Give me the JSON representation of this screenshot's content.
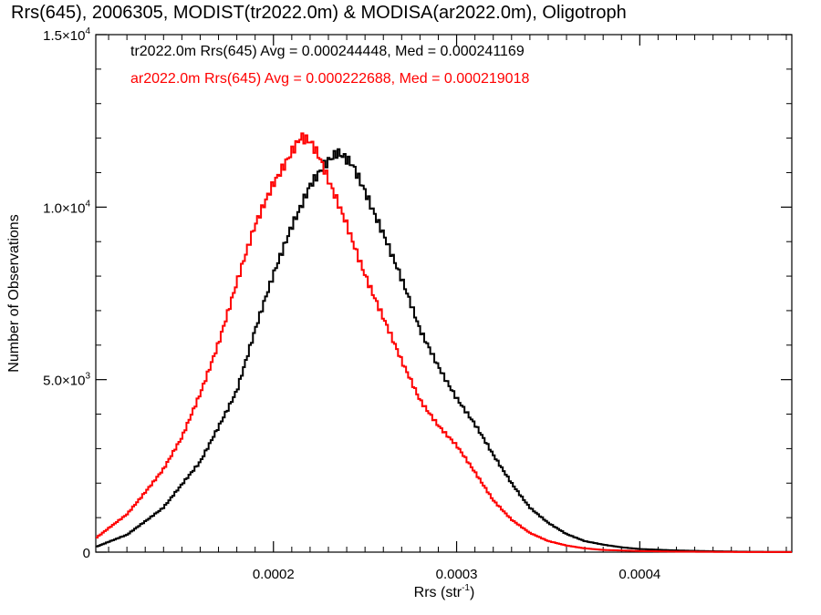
{
  "chart_data": {
    "type": "line",
    "title": "Rrs(645), 2006305, MODIST(tr2022.0m) & MODISA(ar2022.0m), Oligotroph",
    "xlabel": "Rrs (str",
    "xlabel_sup": "-1",
    "xlabel_close": ")",
    "ylabel": "Number of Observations",
    "xlim": [
      0.000103,
      0.000483
    ],
    "ylim": [
      0,
      15000
    ],
    "grid": false,
    "x_ticks": [
      {
        "value": 0.0002,
        "label": "0.0002"
      },
      {
        "value": 0.0003,
        "label": "0.0003"
      },
      {
        "value": 0.0004,
        "label": "0.0004"
      }
    ],
    "y_ticks": [
      {
        "value": 0,
        "mantissa": "0",
        "exp": ""
      },
      {
        "value": 5000,
        "mantissa": "5.0×10",
        "exp": "3"
      },
      {
        "value": 10000,
        "mantissa": "1.0×10",
        "exp": "4"
      },
      {
        "value": 15000,
        "mantissa": "1.5×10",
        "exp": "4"
      }
    ],
    "annotations": [
      {
        "text": "tr2022.0m Rrs(645) Avg = 0.000244448, Med = 0.000241169",
        "color": "#000000"
      },
      {
        "text": "ar2022.0m Rrs(645) Avg = 0.000222688, Med = 0.000219018",
        "color": "#ff0000"
      }
    ],
    "series": [
      {
        "color": "#000000",
        "points": [
          [
            0.000103,
            150
          ],
          [
            0.00012,
            500
          ],
          [
            0.00014,
            1300
          ],
          [
            0.00016,
            2600
          ],
          [
            0.00018,
            4700
          ],
          [
            0.00019,
            6400
          ],
          [
            0.0002,
            8000
          ],
          [
            0.00021,
            9500
          ],
          [
            0.00022,
            10700
          ],
          [
            0.000228,
            11200
          ],
          [
            0.000235,
            11500
          ],
          [
            0.000243,
            11200
          ],
          [
            0.00025,
            10500
          ],
          [
            0.00026,
            9300
          ],
          [
            0.00027,
            7900
          ],
          [
            0.00028,
            6400
          ],
          [
            0.00029,
            5400
          ],
          [
            0.0003,
            4500
          ],
          [
            0.00031,
            3700
          ],
          [
            0.00032,
            2800
          ],
          [
            0.00033,
            2000
          ],
          [
            0.00034,
            1300
          ],
          [
            0.00035,
            850
          ],
          [
            0.00036,
            520
          ],
          [
            0.00037,
            320
          ],
          [
            0.00038,
            220
          ],
          [
            0.00039,
            140
          ],
          [
            0.0004,
            90
          ],
          [
            0.00042,
            50
          ],
          [
            0.00044,
            25
          ],
          [
            0.00046,
            10
          ],
          [
            0.000483,
            5
          ]
        ]
      },
      {
        "color": "#ff0000",
        "points": [
          [
            0.000103,
            400
          ],
          [
            0.00012,
            1100
          ],
          [
            0.00014,
            2400
          ],
          [
            0.00015,
            3300
          ],
          [
            0.00016,
            4600
          ],
          [
            0.00017,
            6100
          ],
          [
            0.00018,
            7800
          ],
          [
            0.00019,
            9400
          ],
          [
            0.0002,
            10700
          ],
          [
            0.00021,
            11700
          ],
          [
            0.000215,
            12100
          ],
          [
            0.00022,
            11900
          ],
          [
            0.000225,
            11400
          ],
          [
            0.00023,
            10700
          ],
          [
            0.00024,
            9500
          ],
          [
            0.00025,
            8100
          ],
          [
            0.00026,
            6800
          ],
          [
            0.00027,
            5500
          ],
          [
            0.00028,
            4400
          ],
          [
            0.00029,
            3700
          ],
          [
            0.0003,
            3100
          ],
          [
            0.00031,
            2300
          ],
          [
            0.00032,
            1500
          ],
          [
            0.00033,
            950
          ],
          [
            0.00034,
            560
          ],
          [
            0.00035,
            320
          ],
          [
            0.00036,
            190
          ],
          [
            0.00037,
            110
          ],
          [
            0.00038,
            65
          ],
          [
            0.0004,
            30
          ],
          [
            0.00042,
            15
          ],
          [
            0.00045,
            5
          ],
          [
            0.000483,
            2
          ]
        ]
      }
    ]
  }
}
